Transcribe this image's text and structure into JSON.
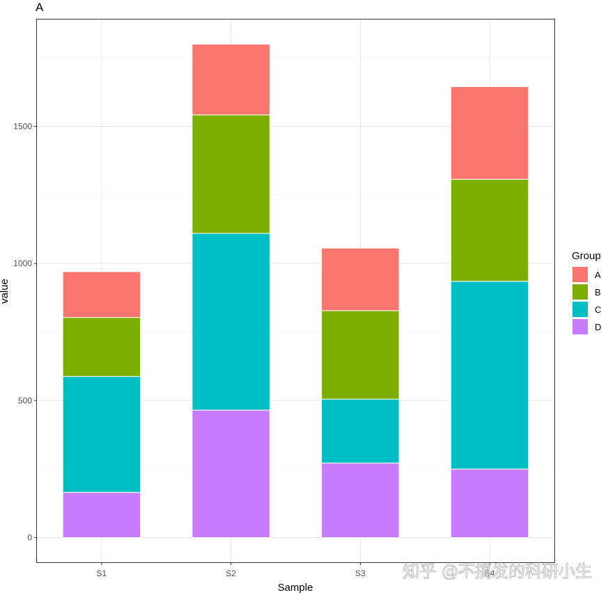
{
  "chart_data": {
    "type": "bar",
    "stacked": true,
    "title": "A",
    "xlabel": "Sample",
    "ylabel": "value",
    "categories": [
      "S1",
      "S2",
      "S3",
      "S4"
    ],
    "ylim": [
      -90,
      1890
    ],
    "yticks": [
      0,
      500,
      1000,
      1500
    ],
    "grid": true,
    "legend": {
      "title": "Group",
      "position": "right"
    },
    "series": [
      {
        "name": "D",
        "color": "#C77CFF",
        "values": [
          165,
          465,
          272,
          250
        ]
      },
      {
        "name": "C",
        "color": "#00BFC4",
        "values": [
          423,
          645,
          233,
          685
        ]
      },
      {
        "name": "B",
        "color": "#7CAE00",
        "values": [
          215,
          432,
          323,
          372
        ]
      },
      {
        "name": "A",
        "color": "#F8766D",
        "values": [
          167,
          258,
          228,
          338
        ]
      }
    ]
  },
  "watermark": "知乎 @不搞发的科研小生"
}
